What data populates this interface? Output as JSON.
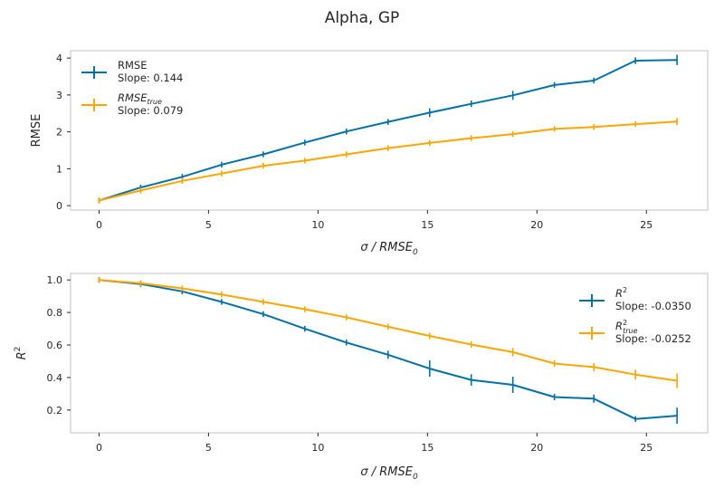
{
  "figure_title": "Alpha, GP",
  "colors": {
    "blue": "#0072A8",
    "orange": "#FFA500"
  },
  "chart_data": [
    {
      "type": "line",
      "panel": "top",
      "xlabel": "σ / RMSE₀",
      "xlabel_parts": {
        "prefix": "σ / ",
        "var": "RMSE",
        "sub": "0"
      },
      "ylabel": "RMSE",
      "xlim": [
        -1.3,
        27.8
      ],
      "ylim": [
        -0.12,
        4.2
      ],
      "xticks": [
        0,
        5,
        10,
        15,
        20,
        25
      ],
      "yticks": [
        0,
        1,
        2,
        3,
        4
      ],
      "grid": false,
      "legend_position": "top-left",
      "series": [
        {
          "name": "RMSE",
          "legend_main": "RMSE",
          "legend_sub": "",
          "legend_italic": false,
          "slope_label": "Slope: 0.144",
          "color": "#0072A8",
          "x": [
            0,
            1.9,
            3.8,
            5.6,
            7.5,
            9.4,
            11.3,
            13.2,
            15.1,
            17.0,
            18.9,
            20.8,
            22.6,
            24.5,
            26.4
          ],
          "y": [
            0.14,
            0.49,
            0.78,
            1.11,
            1.39,
            1.71,
            2.01,
            2.27,
            2.52,
            2.76,
            2.99,
            3.27,
            3.39,
            3.93,
            3.95
          ],
          "err": [
            0.02,
            0.02,
            0.03,
            0.05,
            0.03,
            0.05,
            0.05,
            0.08,
            0.12,
            0.09,
            0.12,
            0.06,
            0.07,
            0.09,
            0.14
          ]
        },
        {
          "name": "RMSE_true",
          "legend_main": "RMSE",
          "legend_sub": "true",
          "legend_italic": true,
          "slope_label": "Slope: 0.079",
          "color": "#FFA500",
          "x": [
            0,
            1.9,
            3.8,
            5.6,
            7.5,
            9.4,
            11.3,
            13.2,
            15.1,
            17.0,
            18.9,
            20.8,
            22.6,
            24.5,
            26.4
          ],
          "y": [
            0.14,
            0.41,
            0.67,
            0.87,
            1.08,
            1.22,
            1.39,
            1.56,
            1.7,
            1.83,
            1.94,
            2.08,
            2.13,
            2.21,
            2.28
          ],
          "err": [
            0.02,
            0.02,
            0.02,
            0.03,
            0.03,
            0.03,
            0.03,
            0.04,
            0.04,
            0.04,
            0.05,
            0.04,
            0.05,
            0.06,
            0.1
          ]
        }
      ]
    },
    {
      "type": "line",
      "panel": "bottom",
      "xlabel": "σ / RMSE₀",
      "xlabel_parts": {
        "prefix": "σ / ",
        "var": "RMSE",
        "sub": "0"
      },
      "ylabel": "R²",
      "ylabel_parts": {
        "var": "R",
        "sup": "2"
      },
      "xlim": [
        -1.3,
        27.8
      ],
      "ylim": [
        0.06,
        1.04
      ],
      "xticks": [
        0,
        5,
        10,
        15,
        20,
        25
      ],
      "yticks": [
        0.2,
        0.4,
        0.6,
        0.8,
        1.0
      ],
      "ytick_labels": [
        "0.2",
        "0.4",
        "0.6",
        "0.8",
        "1.0"
      ],
      "grid": false,
      "legend_position": "top-right",
      "series": [
        {
          "name": "R²",
          "legend_main": "R",
          "legend_sup": "2",
          "legend_sub": "",
          "slope_label": "Slope: -0.0350",
          "color": "#0072A8",
          "x": [
            0,
            1.9,
            3.8,
            5.6,
            7.5,
            9.4,
            11.3,
            13.2,
            15.1,
            17.0,
            18.9,
            20.8,
            22.6,
            24.5,
            26.4
          ],
          "y": [
            1.0,
            0.975,
            0.93,
            0.865,
            0.79,
            0.7,
            0.615,
            0.54,
            0.455,
            0.385,
            0.355,
            0.28,
            0.27,
            0.145,
            0.165
          ],
          "err": [
            0.003,
            0.005,
            0.008,
            0.012,
            0.008,
            0.01,
            0.015,
            0.025,
            0.05,
            0.035,
            0.05,
            0.02,
            0.025,
            0.01,
            0.05
          ]
        },
        {
          "name": "R²_true",
          "legend_main": "R",
          "legend_sup": "2",
          "legend_sub": "true",
          "slope_label": "Slope: -0.0252",
          "color": "#FFA500",
          "x": [
            0,
            1.9,
            3.8,
            5.6,
            7.5,
            9.4,
            11.3,
            13.2,
            15.1,
            17.0,
            18.9,
            20.8,
            22.6,
            24.5,
            26.4
          ],
          "y": [
            1.0,
            0.98,
            0.948,
            0.91,
            0.865,
            0.82,
            0.77,
            0.712,
            0.656,
            0.603,
            0.556,
            0.486,
            0.464,
            0.418,
            0.38
          ],
          "err": [
            0.003,
            0.004,
            0.006,
            0.008,
            0.008,
            0.01,
            0.012,
            0.015,
            0.02,
            0.02,
            0.025,
            0.02,
            0.025,
            0.03,
            0.045
          ]
        }
      ]
    }
  ]
}
